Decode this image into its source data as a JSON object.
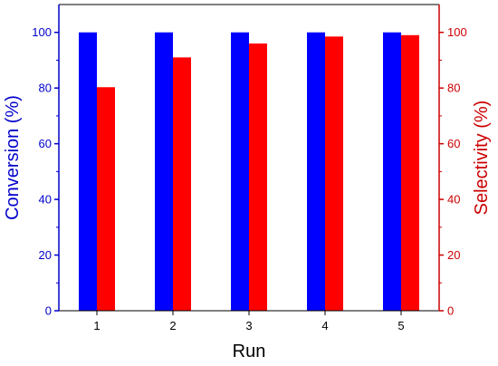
{
  "chart_data": {
    "type": "bar",
    "xlabel": "Run",
    "categories": [
      "1",
      "2",
      "3",
      "4",
      "5"
    ],
    "y_left": {
      "label": "Conversion (%)",
      "lim": [
        0,
        110
      ],
      "ticks": [
        0,
        20,
        40,
        60,
        80,
        100
      ],
      "color": "#0000cc"
    },
    "y_right": {
      "label": "Selectivity (%)",
      "lim": [
        0,
        110
      ],
      "ticks": [
        0,
        20,
        40,
        60,
        80,
        100
      ],
      "color": "#cc0000"
    },
    "series": [
      {
        "values": [
          100,
          100,
          100,
          100,
          100
        ],
        "axis": "left",
        "color": "#0000ff"
      },
      {
        "values": [
          80.3,
          91.0,
          96.0,
          98.5,
          99.0
        ],
        "axis": "right",
        "color": "#ff0000"
      }
    ],
    "grid": false,
    "legend": "none"
  }
}
